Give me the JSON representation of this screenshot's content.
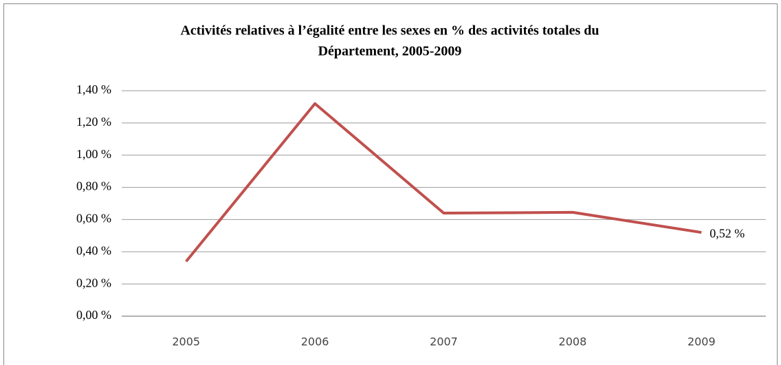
{
  "chart_data": {
    "type": "line",
    "title": [
      "Activités relatives à l’égalité entre les sexes en % des activités totales du",
      "Département, 2005-2009"
    ],
    "categories": [
      "2005",
      "2006",
      "2007",
      "2008",
      "2009"
    ],
    "series": [
      {
        "name": "Activités relatives à l’égalité",
        "color": "#c0504d",
        "values": [
          0.34,
          1.32,
          0.64,
          0.645,
          0.52
        ],
        "value_labels": [
          null,
          null,
          null,
          null,
          "0,52 %"
        ]
      }
    ],
    "ylim": [
      0,
      1.4
    ],
    "yticks": [
      {
        "value": 0,
        "label": "0,00 %"
      },
      {
        "value": 0.2,
        "label": "0,20 %"
      },
      {
        "value": 0.4,
        "label": "0,40 %"
      },
      {
        "value": 0.6,
        "label": "0,60 %"
      },
      {
        "value": 0.8,
        "label": "0,80 %"
      },
      {
        "value": 1.0,
        "label": "1,00 %"
      },
      {
        "value": 1.2,
        "label": "1,20 %"
      },
      {
        "value": 1.4,
        "label": "1,40 %"
      }
    ],
    "grid": true
  }
}
